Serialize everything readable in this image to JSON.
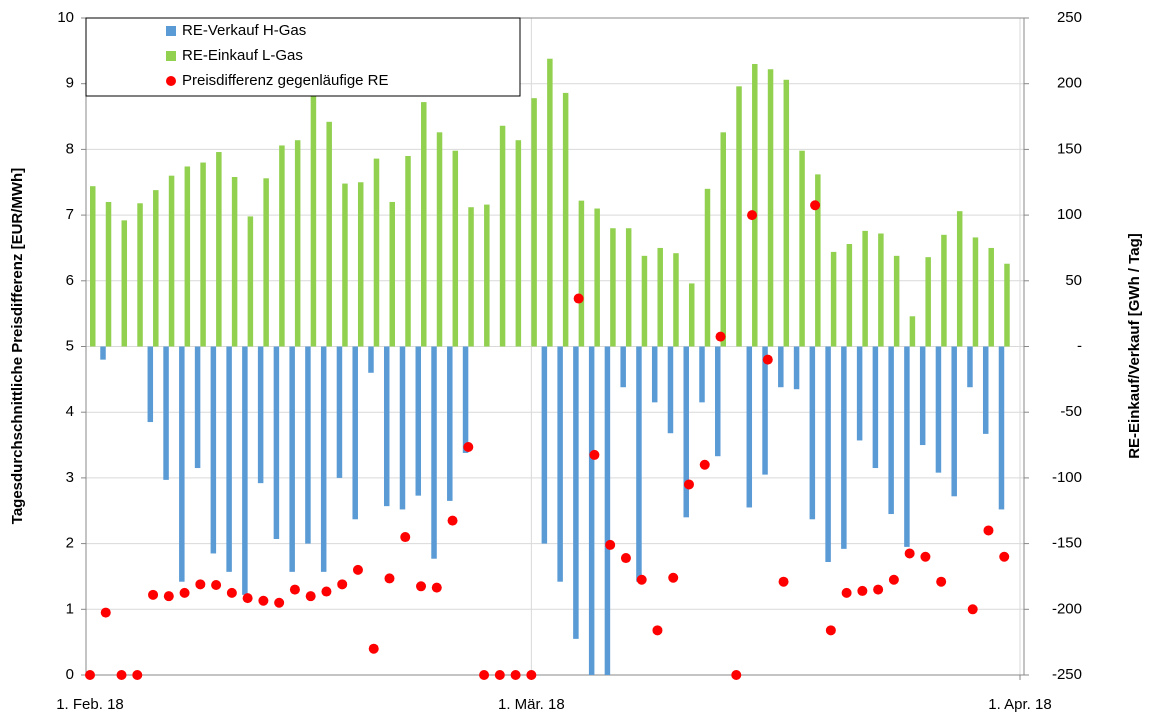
{
  "chart_data": {
    "type": "combo",
    "categories": [
      "1. Feb. 18",
      null,
      null,
      null,
      null,
      null,
      null,
      null,
      null,
      null,
      null,
      null,
      null,
      null,
      null,
      null,
      null,
      null,
      null,
      null,
      null,
      null,
      null,
      null,
      null,
      null,
      null,
      null,
      "1. Mär. 18",
      null,
      null,
      null,
      null,
      null,
      null,
      null,
      null,
      null,
      null,
      null,
      null,
      null,
      null,
      null,
      null,
      null,
      null,
      null,
      null,
      null,
      null,
      null,
      null,
      null,
      null,
      null,
      null,
      null,
      null,
      "1. Apr. 18"
    ],
    "y_label": "Tagesdurchschnittliche Preisdifferenz [EUR/MWh]",
    "y2_label": "RE-Einkauf/Verkauf [GWh / Tag]",
    "ylim": [
      0,
      10
    ],
    "yticks": [
      0,
      1,
      2,
      3,
      4,
      5,
      6,
      7,
      8,
      9,
      10
    ],
    "y2lim": [
      -250,
      250
    ],
    "y2ticks": [
      -250,
      -200,
      -150,
      -100,
      -50,
      {
        "value": 0,
        "label": "-"
      },
      50,
      100,
      150,
      200,
      250
    ],
    "grid": true,
    "legend": "top-left",
    "series": [
      {
        "name": "RE-Verkauf H-Gas",
        "type": "bar",
        "axis": "y2",
        "color": "#5b9bd5",
        "values": [
          null,
          -10,
          null,
          null,
          -57.5,
          -101.5,
          -179,
          -92.5,
          -157.5,
          -171.5,
          -189,
          -104,
          -146.5,
          -171.5,
          -150,
          -171.5,
          -100,
          -131.5,
          -20,
          -121.5,
          -124,
          -113.5,
          -161.5,
          -117.5,
          -81,
          null,
          null,
          null,
          null,
          -150,
          -179,
          -222.5,
          -250,
          -250,
          -31,
          -179,
          -42.5,
          -66,
          -130,
          -42.5,
          -83.5,
          null,
          -122.5,
          -97.5,
          -31,
          -32.5,
          -131.5,
          -164,
          -154,
          -71.5,
          -92.5,
          -127.5,
          -152.5,
          -75,
          -96,
          -114,
          -31,
          -66.5,
          -124,
          null
        ]
      },
      {
        "name": "RE-Einkauf L-Gas",
        "type": "bar",
        "axis": "y2",
        "color": "#92d050",
        "values": [
          122,
          110,
          96,
          109,
          119,
          130,
          137,
          140,
          148,
          129,
          99,
          128,
          153,
          157,
          195,
          171,
          124,
          125,
          143,
          110,
          145,
          186,
          163,
          149,
          106,
          108,
          168,
          157,
          189,
          219,
          193,
          111,
          105,
          90,
          90,
          69,
          75,
          71,
          48,
          120,
          163,
          198,
          215,
          211,
          203,
          149,
          131,
          72,
          78,
          88,
          86,
          69,
          23,
          68,
          85,
          103,
          83,
          75,
          63,
          null
        ]
      },
      {
        "name": "Preisdifferenz gegenläufige RE",
        "type": "scatter",
        "color": "#ff0000",
        "values": [
          0,
          0.95,
          0,
          0,
          1.22,
          1.2,
          1.25,
          1.38,
          1.37,
          1.25,
          1.17,
          1.13,
          1.1,
          1.3,
          1.2,
          1.27,
          1.38,
          1.6,
          0.4,
          1.47,
          2.1,
          1.35,
          1.33,
          2.35,
          3.47,
          0,
          0,
          0,
          0,
          null,
          null,
          5.73,
          3.35,
          1.98,
          1.78,
          1.45,
          0.68,
          1.48,
          2.9,
          3.2,
          5.15,
          0,
          7.0,
          4.8,
          1.42,
          null,
          7.15,
          0.68,
          1.25,
          1.28,
          1.3,
          1.45,
          1.85,
          1.8,
          1.42,
          null,
          1.0,
          2.2,
          1.8,
          null
        ]
      }
    ]
  }
}
